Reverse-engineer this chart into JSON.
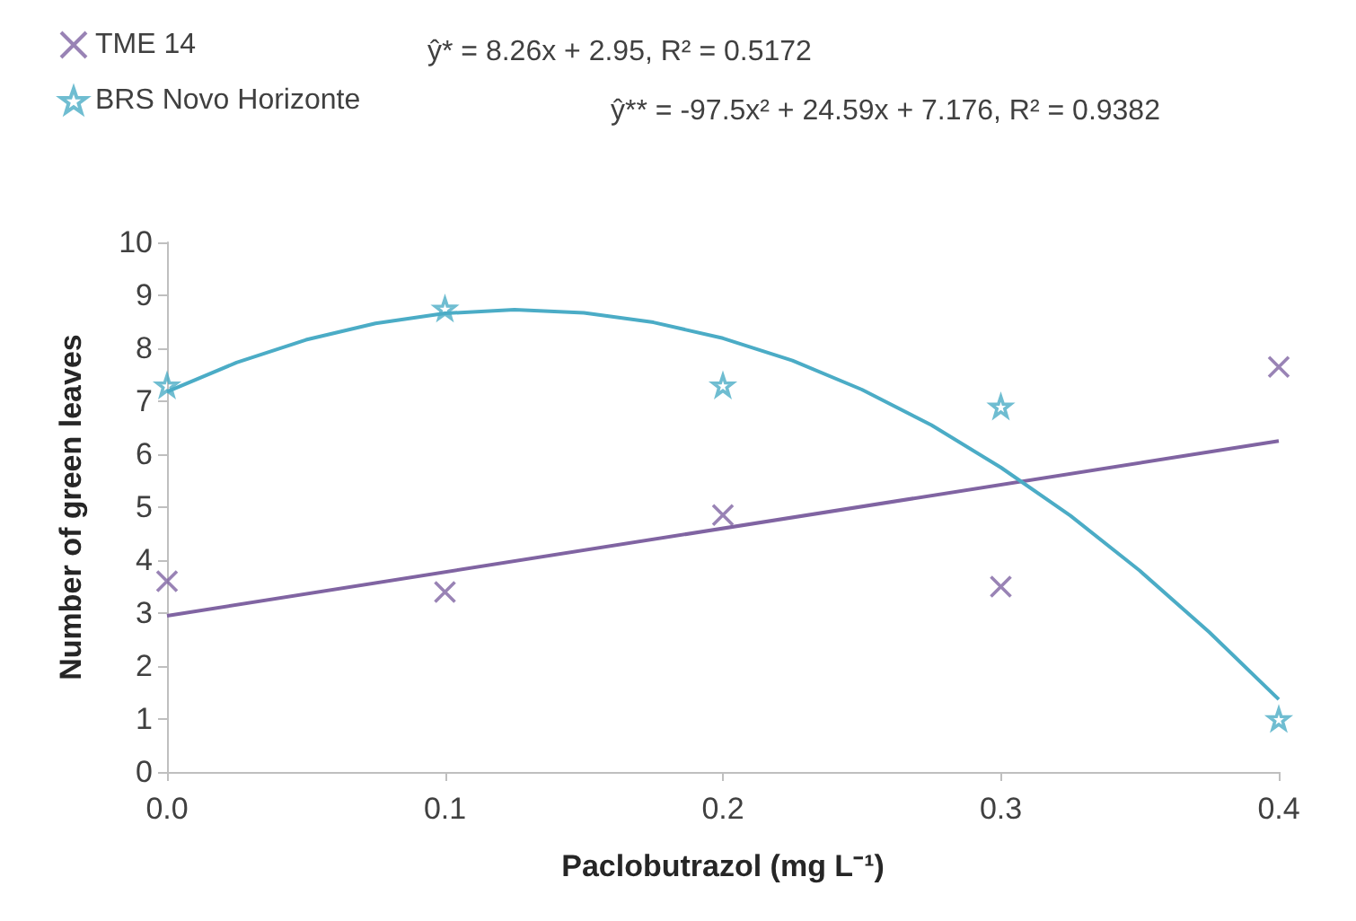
{
  "chart_data": {
    "type": "scatter",
    "xlabel": "Paclobutrazol (mg L⁻¹)",
    "ylabel": "Number of green leaves",
    "xlim": [
      0,
      0.4
    ],
    "xticks": [
      {
        "value": 0,
        "label": "0.0"
      },
      {
        "value": 0.1,
        "label": "0.1"
      },
      {
        "value": 0.2,
        "label": "0.2"
      },
      {
        "value": 0.3,
        "label": "0.3"
      },
      {
        "value": 0.4,
        "label": "0.4"
      }
    ],
    "ylim": [
      0,
      10
    ],
    "yticks": [
      0,
      1,
      2,
      3,
      4,
      5,
      6,
      7,
      8,
      9,
      10
    ],
    "grid": false,
    "legend": "top left",
    "annotations": [
      "ŷ* = 8.26x + 2.95, R² = 0.5172",
      "ŷ** = -97.5x² + 24.59x + 7.176, R² = 0.9382"
    ],
    "series": [
      {
        "name": "TME 14",
        "marker": "cross",
        "color": "#8064a2",
        "x": [
          0,
          0.1,
          0.2,
          0.3,
          0.4
        ],
        "values": [
          3.6,
          3.4,
          4.85,
          3.5,
          7.65
        ]
      },
      {
        "name": "BRS Novo Horizonte",
        "marker": "star",
        "color": "#4bacc6",
        "x": [
          0,
          0.1,
          0.2,
          0.3,
          0.4
        ],
        "values": [
          7.3,
          8.75,
          7.3,
          6.9,
          1.0
        ]
      },
      {
        "type": "line",
        "marker": "none",
        "color": "#8064a2",
        "x": [
          0,
          0.4
        ],
        "values": [
          2.95,
          6.25
        ]
      },
      {
        "type": "line",
        "marker": "none",
        "color": "#4bacc6",
        "x": [
          0,
          0.025,
          0.05,
          0.075,
          0.1,
          0.125,
          0.15,
          0.175,
          0.2,
          0.225,
          0.25,
          0.275,
          0.3,
          0.325,
          0.35,
          0.375,
          0.4
        ],
        "values": [
          7.18,
          7.73,
          8.16,
          8.47,
          8.66,
          8.73,
          8.67,
          8.49,
          8.19,
          7.77,
          7.22,
          6.55,
          5.75,
          4.84,
          3.8,
          2.64,
          1.37
        ]
      }
    ]
  }
}
